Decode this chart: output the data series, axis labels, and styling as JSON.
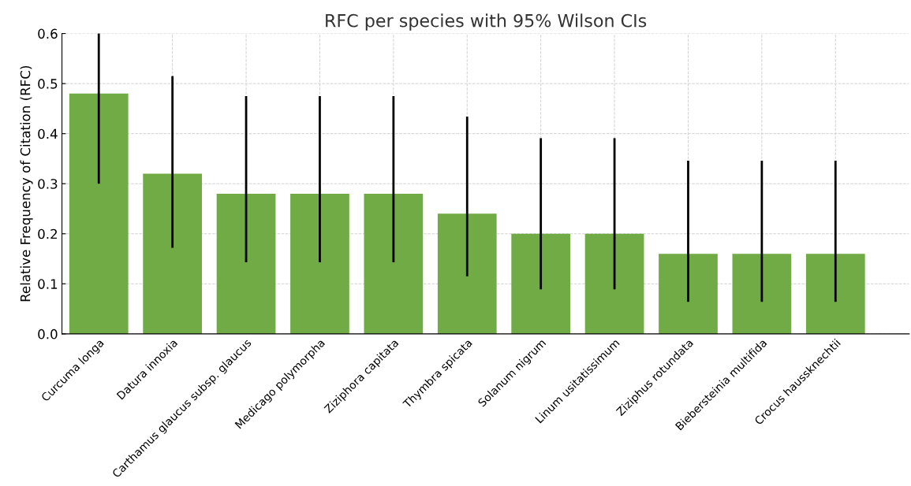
{
  "chart_data": {
    "type": "bar",
    "title": "RFC per species with 95% Wilson CIs",
    "ylabel": "Relative Frequency of Citation (RFC)",
    "categories": [
      "Curcuma longa",
      "Datura innoxia",
      "Carthamus glaucus subsp. glaucus",
      "Medicago polymorpha",
      "Ziziphora capitata",
      "Thymbra spicata",
      "Solanum nigrum",
      "Linum usitatissimum",
      "Ziziphus rotundata",
      "Biebersteinia multifida",
      "Crocus haussknechtii"
    ],
    "values": [
      0.48,
      0.32,
      0.28,
      0.28,
      0.28,
      0.24,
      0.2,
      0.2,
      0.16,
      0.16,
      0.16
    ],
    "errors": [
      [
        0.3,
        0.6
      ],
      [
        0.172,
        0.515
      ],
      [
        0.143,
        0.475
      ],
      [
        0.143,
        0.475
      ],
      [
        0.143,
        0.475
      ],
      [
        0.115,
        0.434
      ],
      [
        0.089,
        0.391
      ],
      [
        0.089,
        0.391
      ],
      [
        0.064,
        0.346
      ],
      [
        0.064,
        0.346
      ],
      [
        0.064,
        0.346
      ]
    ],
    "color": "#70ab46",
    "ylim": [
      0,
      0.6
    ],
    "yticks": [
      {
        "value": 0,
        "label": "0.0"
      },
      0.1,
      0.2,
      0.3,
      0.4,
      0.5,
      0.6
    ],
    "grid": true
  }
}
